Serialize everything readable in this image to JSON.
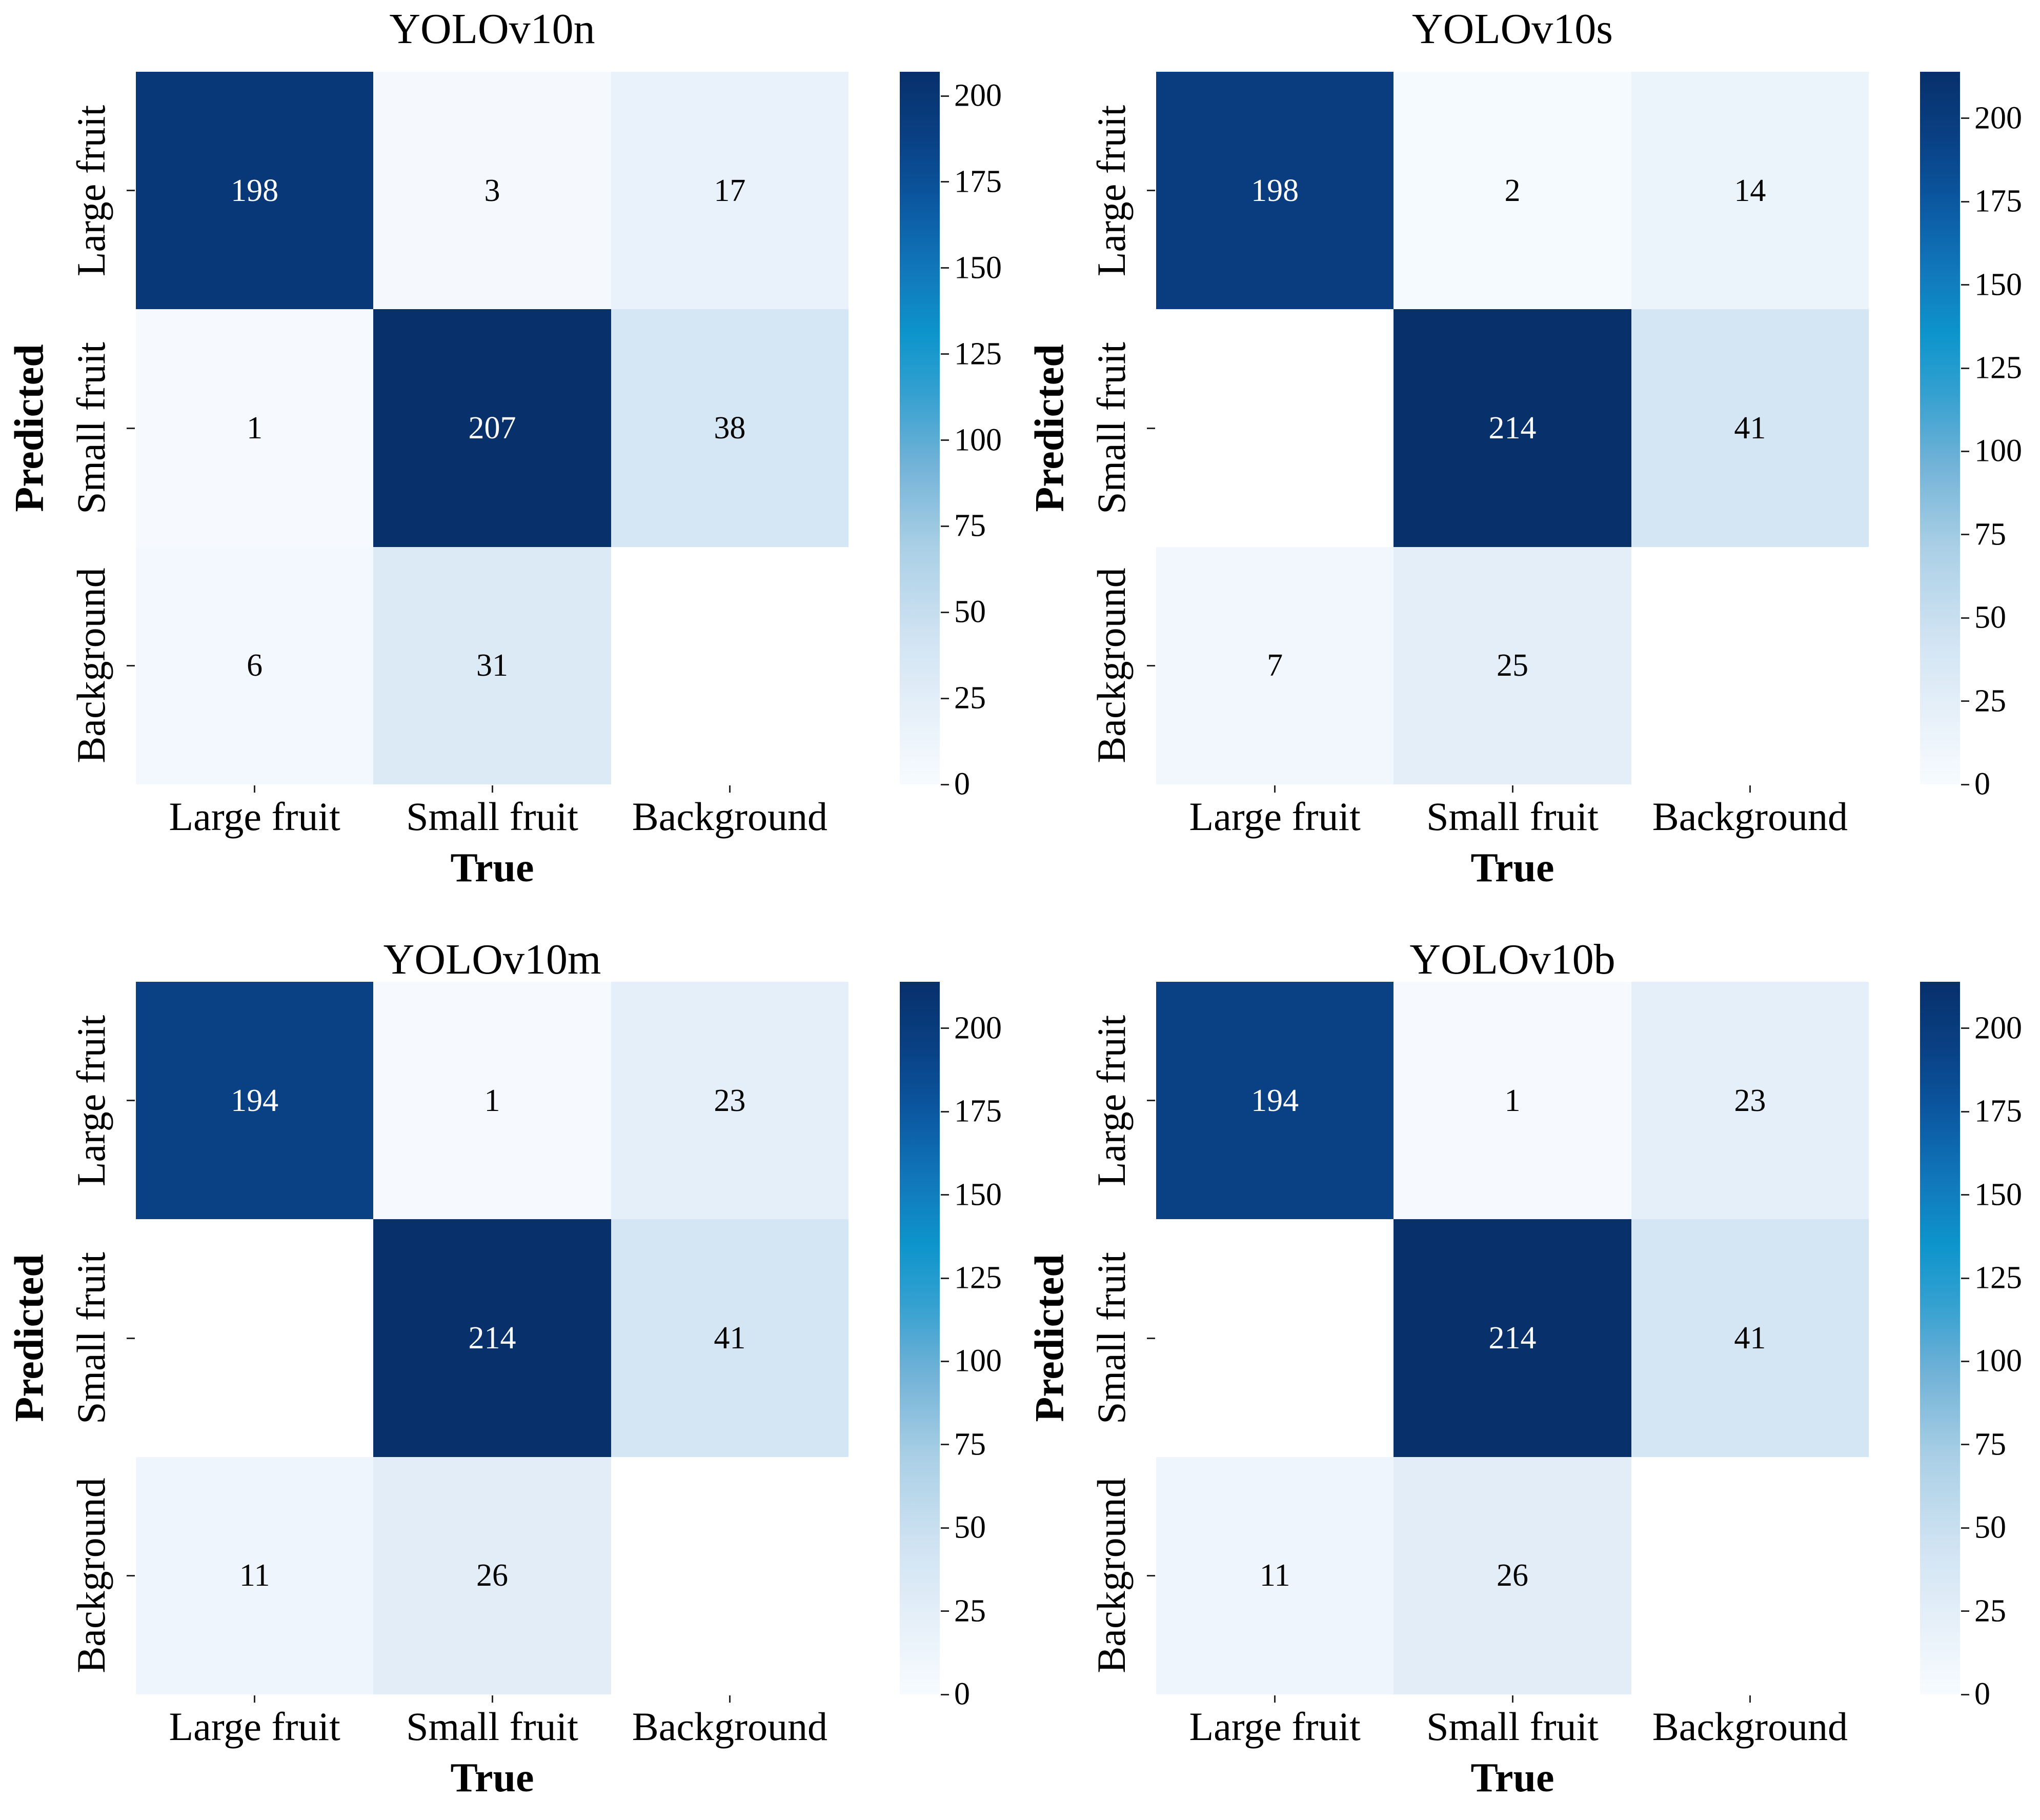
{
  "figure": {
    "type": "confusion-matrix-grid",
    "x_axis_label": "True",
    "y_axis_label": "Predicted",
    "classes": [
      "Large fruit",
      "Small fruit",
      "Background"
    ],
    "colorbar_ticks": [
      0,
      25,
      50,
      75,
      100,
      125,
      150,
      175,
      200
    ]
  },
  "colors": {
    "background": "#ffffff",
    "empty_cell": "#ffffff",
    "cell_text_dark": "#000000",
    "cell_text_light": "#ffffff",
    "axis_text": "#000000",
    "tick_mark": "#262626",
    "colormap_name": "Blues",
    "colormap_stops": [
      [
        0.0,
        "#f7fbff"
      ],
      [
        0.1,
        "#e6f0f9"
      ],
      [
        0.2,
        "#d2e4f3"
      ],
      [
        0.33,
        "#abd0e6"
      ],
      [
        0.45,
        "#71b2d7"
      ],
      [
        0.55,
        "#33a0d0"
      ],
      [
        0.63,
        "#0d95cc"
      ],
      [
        0.72,
        "#1178bb"
      ],
      [
        0.82,
        "#0b57a0"
      ],
      [
        0.9,
        "#094286"
      ],
      [
        1.0,
        "#08306b"
      ]
    ]
  },
  "chart_data": [
    {
      "type": "heatmap",
      "title": "YOLOv10n",
      "xlabel": "True",
      "ylabel": "Predicted",
      "x_categories": [
        "Large fruit",
        "Small fruit",
        "Background"
      ],
      "y_categories": [
        "Large fruit",
        "Small fruit",
        "Background"
      ],
      "values": [
        [
          198,
          3,
          17
        ],
        [
          1,
          207,
          38
        ],
        [
          6,
          31,
          null
        ]
      ],
      "vmin": 0,
      "vmax": 207,
      "colorbar_ticks": [
        0,
        25,
        50,
        75,
        100,
        125,
        150,
        175,
        200
      ],
      "legend_position": "right-colorbar",
      "grid": false
    },
    {
      "type": "heatmap",
      "title": "YOLOv10s",
      "xlabel": "True",
      "ylabel": "Predicted",
      "x_categories": [
        "Large fruit",
        "Small fruit",
        "Background"
      ],
      "y_categories": [
        "Large fruit",
        "Small fruit",
        "Background"
      ],
      "values": [
        [
          198,
          2,
          14
        ],
        [
          null,
          214,
          41
        ],
        [
          7,
          25,
          null
        ]
      ],
      "vmin": 0,
      "vmax": 214,
      "colorbar_ticks": [
        0,
        25,
        50,
        75,
        100,
        125,
        150,
        175,
        200
      ],
      "legend_position": "right-colorbar",
      "grid": false
    },
    {
      "type": "heatmap",
      "title": "YOLOv10m",
      "xlabel": "True",
      "ylabel": "Predicted",
      "x_categories": [
        "Large fruit",
        "Small fruit",
        "Background"
      ],
      "y_categories": [
        "Large fruit",
        "Small fruit",
        "Background"
      ],
      "values": [
        [
          194,
          1,
          23
        ],
        [
          null,
          214,
          41
        ],
        [
          11,
          26,
          null
        ]
      ],
      "vmin": 0,
      "vmax": 214,
      "colorbar_ticks": [
        0,
        25,
        50,
        75,
        100,
        125,
        150,
        175,
        200
      ],
      "legend_position": "right-colorbar",
      "grid": false
    },
    {
      "type": "heatmap",
      "title": "YOLOv10b",
      "xlabel": "True",
      "ylabel": "Predicted",
      "x_categories": [
        "Large fruit",
        "Small fruit",
        "Background"
      ],
      "y_categories": [
        "Large fruit",
        "Small fruit",
        "Background"
      ],
      "values": [
        [
          194,
          1,
          23
        ],
        [
          null,
          214,
          41
        ],
        [
          11,
          26,
          null
        ]
      ],
      "vmin": 0,
      "vmax": 214,
      "colorbar_ticks": [
        0,
        25,
        50,
        75,
        100,
        125,
        150,
        175,
        200
      ],
      "legend_position": "right-colorbar",
      "grid": false
    }
  ]
}
